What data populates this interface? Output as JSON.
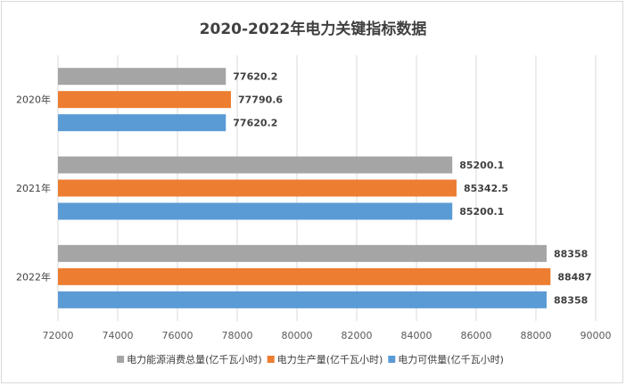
{
  "chart_data": {
    "type": "bar",
    "orientation": "horizontal",
    "title": "2020-2022年电力关键指标数据",
    "categories": [
      "2020年",
      "2021年",
      "2022年"
    ],
    "series": [
      {
        "name": "电力能源消费总量(亿千瓦小时)",
        "color": "#a5a5a5",
        "values": [
          77620.2,
          85200.1,
          88358
        ]
      },
      {
        "name": "电力生产量(亿千瓦小时)",
        "color": "#ed7d31",
        "values": [
          77790.6,
          85342.5,
          88487
        ]
      },
      {
        "name": "电力可供量(亿千瓦小时)",
        "color": "#5b9bd5",
        "values": [
          77620.2,
          85200.1,
          88358
        ]
      }
    ],
    "data_labels": [
      [
        "77620.2",
        "85200.1",
        "88358"
      ],
      [
        "77790.6",
        "85342.5",
        "88487"
      ],
      [
        "77620.2",
        "85200.1",
        "88358"
      ]
    ],
    "xlim": [
      72000,
      90000
    ],
    "xticks": [
      "72000",
      "74000",
      "76000",
      "78000",
      "80000",
      "82000",
      "84000",
      "86000",
      "88000",
      "90000"
    ],
    "xlabel": "",
    "ylabel": "",
    "grid": true,
    "legend": "bottom"
  }
}
